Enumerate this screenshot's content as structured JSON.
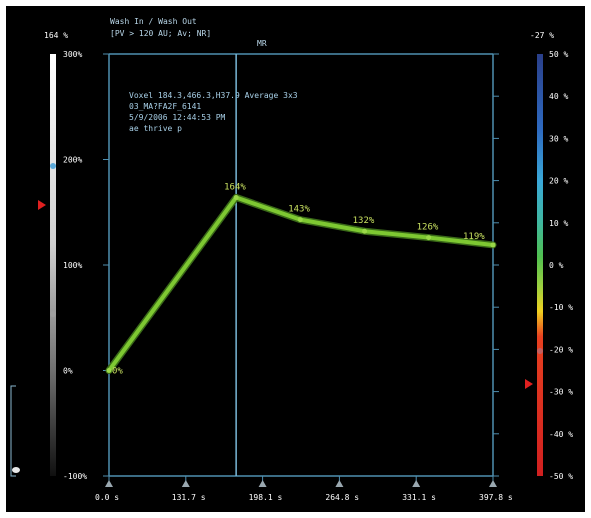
{
  "header": {
    "title": "Wash In / Wash Out",
    "subtitle": "[PV > 120 AU; Av; NR]",
    "marker_label": "MR"
  },
  "info": {
    "voxel": "Voxel 184.3,466.3,H37.9 Average 3x3",
    "series": "03_MA?FA2F_6141",
    "datetime": "5/9/2006 12:44:53 PM",
    "note": "ae thrive p"
  },
  "left_scale": {
    "top_label": "164 %",
    "tick_labels": [
      "300%",
      "200%",
      "100%",
      "0%",
      "-100%"
    ]
  },
  "right_scale": {
    "top_label": "-27 %",
    "tick_labels": [
      "50 %",
      "40 %",
      "30 %",
      "20 %",
      "10 %",
      "0 %",
      "-10 %",
      "-20 %",
      "-30 %",
      "-40 %",
      "-50 %"
    ]
  },
  "x_axis": {
    "tick_labels": [
      "0.0 s",
      "131.7 s",
      "198.1 s",
      "264.8 s",
      "331.1 s",
      "397.8 s"
    ]
  },
  "colors": {
    "curve": "#7ec832",
    "axis": "#4f8fb0",
    "cursor": "#7ab8d8",
    "marker": "#e02020"
  },
  "chart_data": {
    "type": "line",
    "x": [
      0.0,
      131.7,
      198.1,
      264.8,
      331.1,
      397.8
    ],
    "series": [
      {
        "values": [
          0,
          164,
          143,
          132,
          126,
          119
        ]
      }
    ],
    "data_labels": [
      "0%",
      "164%",
      "143%",
      "132%",
      "126%",
      "119%"
    ],
    "ylim": [
      -100,
      300
    ],
    "xlim": [
      0,
      397.8
    ],
    "grid": false,
    "cursor_x": 131.7
  }
}
